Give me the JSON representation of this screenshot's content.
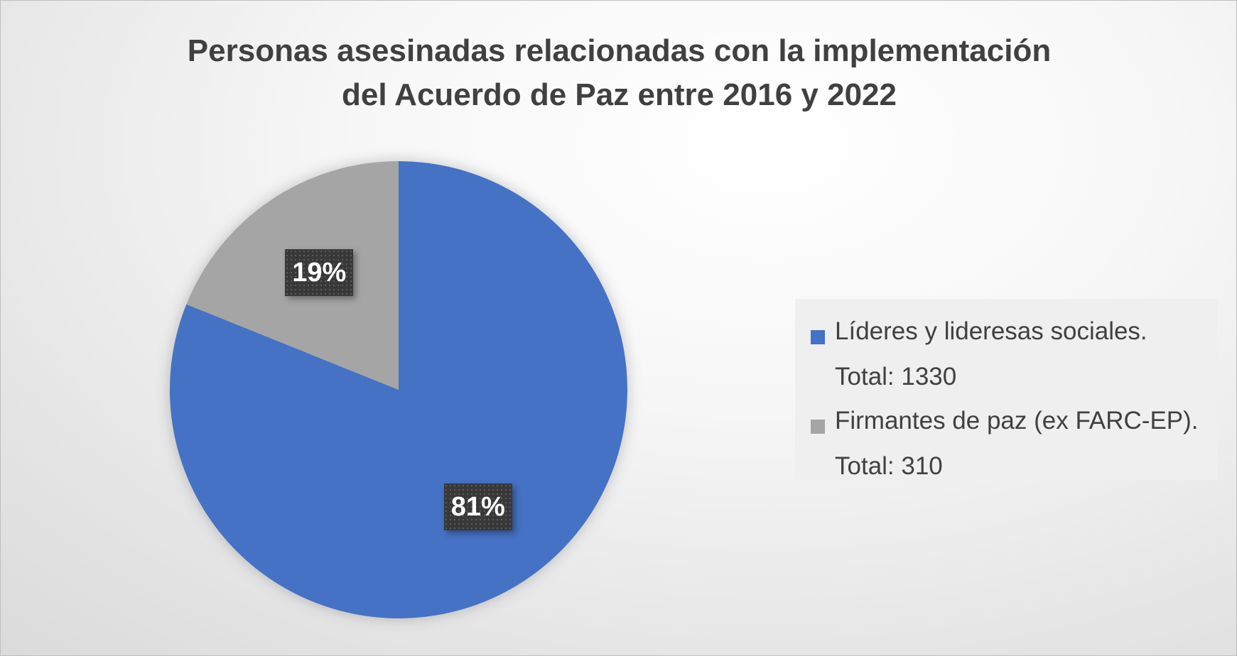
{
  "chart_data": {
    "type": "pie",
    "title": "Personas asesinadas relacionadas con la implementación del Acuerdo de Paz entre 2016 y 2022",
    "title_lines": [
      "Personas asesinadas relacionadas con la implementación",
      "del Acuerdo de Paz entre 2016 y 2022"
    ],
    "slices": [
      {
        "label_lines": [
          "Líderes y lideresas sociales.",
          "Total: 1330"
        ],
        "value": 1330,
        "percent_label": "81%",
        "color": "#4472C4"
      },
      {
        "label_lines": [
          "Firmantes de paz (ex FARC-EP).",
          "Total: 310"
        ],
        "value": 310,
        "percent_label": "19%",
        "color": "#A5A5A5"
      }
    ],
    "legend_position": "right"
  }
}
